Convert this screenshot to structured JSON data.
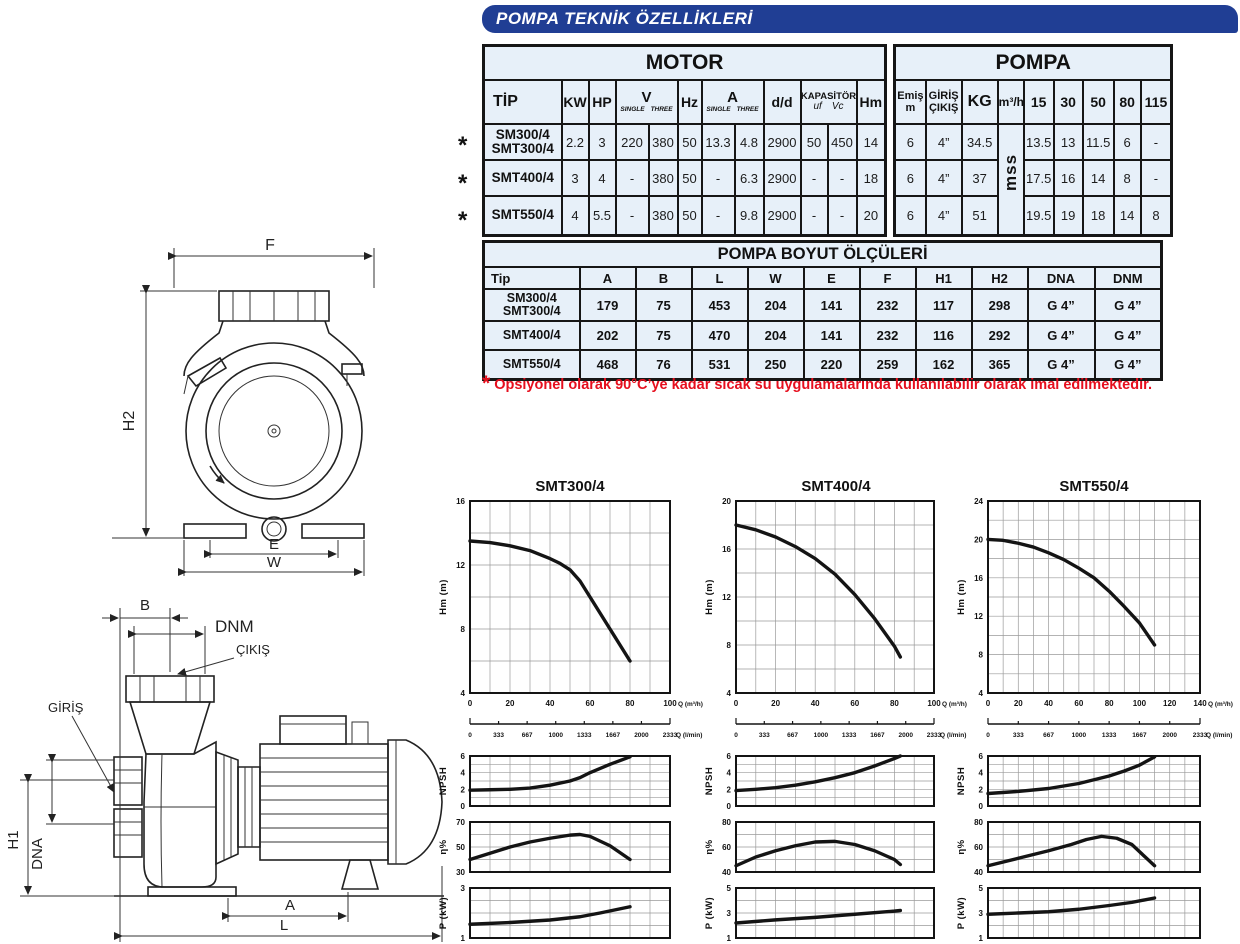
{
  "title_bar": "POMPA TEKNİK ÖZELLİKLERİ",
  "colors": {
    "header_bar": "#203e94",
    "table_cell": "#e7f0f9",
    "note_red": "#e60f1e",
    "line": "#111111"
  },
  "spec": {
    "motor_title": "MOTOR",
    "pompa_title": "POMPA",
    "head": {
      "tip": "TİP",
      "kw": "KW",
      "hp": "HP",
      "v": "V",
      "single": "SINGLE",
      "three": "THREE",
      "hz": "Hz",
      "a": "A",
      "dd": "d/d",
      "kapasitor": "KAPASİTÖR",
      "uf": "uf",
      "vc": "Vc",
      "hm": "Hm",
      "emis_1": "Emiş",
      "emis_2": "m",
      "giris_1": "GİRİŞ",
      "giris_2": "ÇIKIŞ",
      "kg": "KG",
      "m3h": "m³/h",
      "f15": "15",
      "f30": "30",
      "f50": "50",
      "f80": "80",
      "f115": "115"
    },
    "mss": "mss",
    "rows": [
      {
        "star": "*",
        "tip_lines": [
          "SM300/4",
          "SMT300/4"
        ],
        "motor": [
          "2.2",
          "3",
          "220",
          "380",
          "50",
          "13.3",
          "4.8",
          "2900",
          "50",
          "450",
          "14"
        ],
        "pompa": [
          "6",
          "4”",
          "34.5",
          "13.5",
          "13",
          "11.5",
          "6",
          "-"
        ]
      },
      {
        "star": "*",
        "tip_lines": [
          "SMT400/4"
        ],
        "motor": [
          "3",
          "4",
          "-",
          "380",
          "50",
          "-",
          "6.3",
          "2900",
          "-",
          "-",
          "18"
        ],
        "pompa": [
          "6",
          "4”",
          "37",
          "17.5",
          "16",
          "14",
          "8",
          "-"
        ]
      },
      {
        "star": "*",
        "tip_lines": [
          "SMT550/4"
        ],
        "motor": [
          "4",
          "5.5",
          "-",
          "380",
          "50",
          "-",
          "9.8",
          "2900",
          "-",
          "-",
          "20"
        ],
        "pompa": [
          "6",
          "4”",
          "51",
          "19.5",
          "19",
          "18",
          "14",
          "8"
        ]
      }
    ]
  },
  "dims": {
    "title": "POMPA BOYUT ÖLÇÜLERİ",
    "headers": [
      "Tip",
      "A",
      "B",
      "L",
      "W",
      "E",
      "F",
      "H1",
      "H2",
      "DNA",
      "DNM"
    ],
    "rows": [
      {
        "tip_lines": [
          "SM300/4",
          "SMT300/4"
        ],
        "values": [
          "179",
          "75",
          "453",
          "204",
          "141",
          "232",
          "117",
          "298",
          "G 4”",
          "G 4”"
        ]
      },
      {
        "tip_lines": [
          "SMT400/4"
        ],
        "values": [
          "202",
          "75",
          "470",
          "204",
          "141",
          "232",
          "116",
          "292",
          "G 4”",
          "G 4”"
        ]
      },
      {
        "tip_lines": [
          "SMT550/4"
        ],
        "values": [
          "468",
          "76",
          "531",
          "250",
          "220",
          "259",
          "162",
          "365",
          "G 4”",
          "G 4”"
        ]
      }
    ]
  },
  "note": {
    "star": "*",
    "text": "Opsiyonel olarak 90°C’ye kadar sıcak su uygulamalarında kullanılabilir olarak imal edilmektedir."
  },
  "drawing": {
    "front": {
      "f": "F",
      "h2": "H2",
      "e": "E",
      "w": "W"
    },
    "side": {
      "b": "B",
      "dnm": "DNM",
      "cikis": "ÇIKIŞ",
      "giris": "GİRİŞ",
      "h1": "H1",
      "dna": "DNA",
      "a": "A",
      "l": "L"
    }
  },
  "chart_data": [
    {
      "type": "line",
      "title": "SMT300/4",
      "x_axis": {
        "min": 0,
        "max": 100,
        "grid_step": 10,
        "label_step": 20,
        "unit_label": "Q (m³/h)"
      },
      "lmin_axis": {
        "ticks": [
          "0",
          "333",
          "667",
          "1000",
          "1333",
          "1667",
          "2000",
          "2333"
        ],
        "unit_label": "Q (l/min)"
      },
      "panels": [
        {
          "ylabel": "Hm  (m)",
          "ymin": 4,
          "ymax": 16,
          "yticks": [
            4,
            8,
            12,
            16
          ],
          "ygrid_step": 2,
          "x": [
            0,
            10,
            20,
            30,
            40,
            45,
            50,
            55,
            60,
            65,
            70,
            75,
            80
          ],
          "y": [
            13.5,
            13.4,
            13.2,
            12.9,
            12.4,
            12.1,
            11.7,
            11.0,
            10.0,
            9.0,
            8.0,
            7.0,
            6.0
          ]
        },
        {
          "ylabel": "NPSH",
          "ymin": 0,
          "ymax": 6,
          "yticks": [
            0,
            2,
            4,
            6
          ],
          "ygrid_step": 1,
          "x": [
            0,
            10,
            20,
            30,
            40,
            50,
            55,
            60,
            70,
            80
          ],
          "y": [
            1.9,
            1.95,
            2.0,
            2.15,
            2.5,
            3.0,
            3.4,
            4.0,
            5.0,
            5.9
          ]
        },
        {
          "ylabel": "η%",
          "ymin": 30,
          "ymax": 70,
          "yticks": [
            30,
            50,
            70
          ],
          "ygrid_step": 10,
          "x": [
            0,
            10,
            20,
            30,
            40,
            50,
            55,
            60,
            70,
            80
          ],
          "y": [
            40,
            45,
            50,
            54,
            57,
            59.5,
            60,
            58.5,
            51,
            40
          ]
        },
        {
          "ylabel": "P  (kW)",
          "ymin": 1,
          "ymax": 3,
          "yticks": [
            1,
            3
          ],
          "ygrid_step": 0.5,
          "x": [
            0,
            20,
            40,
            55,
            65,
            80
          ],
          "y": [
            1.55,
            1.62,
            1.72,
            1.85,
            2.0,
            2.25
          ]
        }
      ]
    },
    {
      "type": "line",
      "title": "SMT400/4",
      "x_axis": {
        "min": 0,
        "max": 100,
        "grid_step": 10,
        "label_step": 20,
        "unit_label": "Q (m³/h)"
      },
      "lmin_axis": {
        "ticks": [
          "0",
          "333",
          "667",
          "1000",
          "1333",
          "1667",
          "2000",
          "2333"
        ],
        "unit_label": "Q (l/min)"
      },
      "panels": [
        {
          "ylabel": "Hm  (m)",
          "ymin": 4,
          "ymax": 20,
          "yticks": [
            4,
            8,
            12,
            16,
            20
          ],
          "ygrid_step": 2,
          "x": [
            0,
            10,
            20,
            30,
            40,
            50,
            60,
            70,
            80,
            83
          ],
          "y": [
            18.0,
            17.6,
            17.0,
            16.2,
            15.2,
            13.9,
            12.2,
            10.2,
            7.9,
            7.0
          ]
        },
        {
          "ylabel": "NPSH",
          "ymin": 0,
          "ymax": 6,
          "yticks": [
            0,
            2,
            4,
            6
          ],
          "ygrid_step": 1,
          "x": [
            0,
            10,
            20,
            30,
            40,
            50,
            60,
            70,
            80,
            83
          ],
          "y": [
            1.85,
            2.0,
            2.2,
            2.5,
            2.9,
            3.4,
            4.0,
            4.8,
            5.7,
            6.0
          ]
        },
        {
          "ylabel": "η%",
          "ymin": 40,
          "ymax": 80,
          "yticks": [
            40,
            60,
            80
          ],
          "ygrid_step": 10,
          "x": [
            0,
            10,
            20,
            30,
            40,
            50,
            60,
            70,
            80,
            83
          ],
          "y": [
            45,
            52,
            57,
            61,
            64,
            64.5,
            62,
            57,
            50,
            46
          ]
        },
        {
          "ylabel": "P  (kW)",
          "ymin": 1,
          "ymax": 5,
          "yticks": [
            1,
            3,
            5
          ],
          "ygrid_step": 1,
          "x": [
            0,
            20,
            40,
            60,
            80,
            83
          ],
          "y": [
            2.2,
            2.45,
            2.65,
            2.9,
            3.15,
            3.2
          ]
        }
      ]
    },
    {
      "type": "line",
      "title": "SMT550/4",
      "x_axis": {
        "min": 0,
        "max": 140,
        "grid_step": 10,
        "label_step": 20,
        "unit_label": "Q (m³/h)"
      },
      "lmin_axis": {
        "ticks": [
          "0",
          "333",
          "667",
          "1000",
          "1333",
          "1667",
          "2000",
          "2333"
        ],
        "unit_label": "Q (l/min)"
      },
      "panels": [
        {
          "ylabel": "Hm  (m)",
          "ymin": 4,
          "ymax": 24,
          "yticks": [
            4,
            8,
            12,
            16,
            20,
            24
          ],
          "ygrid_step": 2,
          "x": [
            0,
            10,
            20,
            30,
            40,
            50,
            60,
            70,
            80,
            90,
            100,
            110
          ],
          "y": [
            20.0,
            19.9,
            19.6,
            19.2,
            18.6,
            17.9,
            17.0,
            16.0,
            14.6,
            13.0,
            11.3,
            9.0
          ]
        },
        {
          "ylabel": "NPSH",
          "ymin": 0,
          "ymax": 6,
          "yticks": [
            0,
            2,
            4,
            6
          ],
          "ygrid_step": 1,
          "x": [
            0,
            20,
            40,
            60,
            80,
            90,
            100,
            110
          ],
          "y": [
            1.5,
            1.75,
            2.1,
            2.7,
            3.6,
            4.2,
            4.9,
            5.9
          ]
        },
        {
          "ylabel": "η%",
          "ymin": 40,
          "ymax": 80,
          "yticks": [
            40,
            60,
            80
          ],
          "ygrid_step": 10,
          "x": [
            0,
            20,
            40,
            55,
            65,
            75,
            85,
            95,
            110
          ],
          "y": [
            45,
            51,
            57,
            62,
            66,
            68.5,
            67,
            62,
            45
          ]
        },
        {
          "ylabel": "P  (kW)",
          "ymin": 1,
          "ymax": 5,
          "yticks": [
            1,
            3,
            5
          ],
          "ygrid_step": 1,
          "x": [
            0,
            20,
            40,
            60,
            80,
            95,
            110
          ],
          "y": [
            2.9,
            3.0,
            3.1,
            3.3,
            3.6,
            3.85,
            4.2
          ]
        }
      ]
    }
  ]
}
